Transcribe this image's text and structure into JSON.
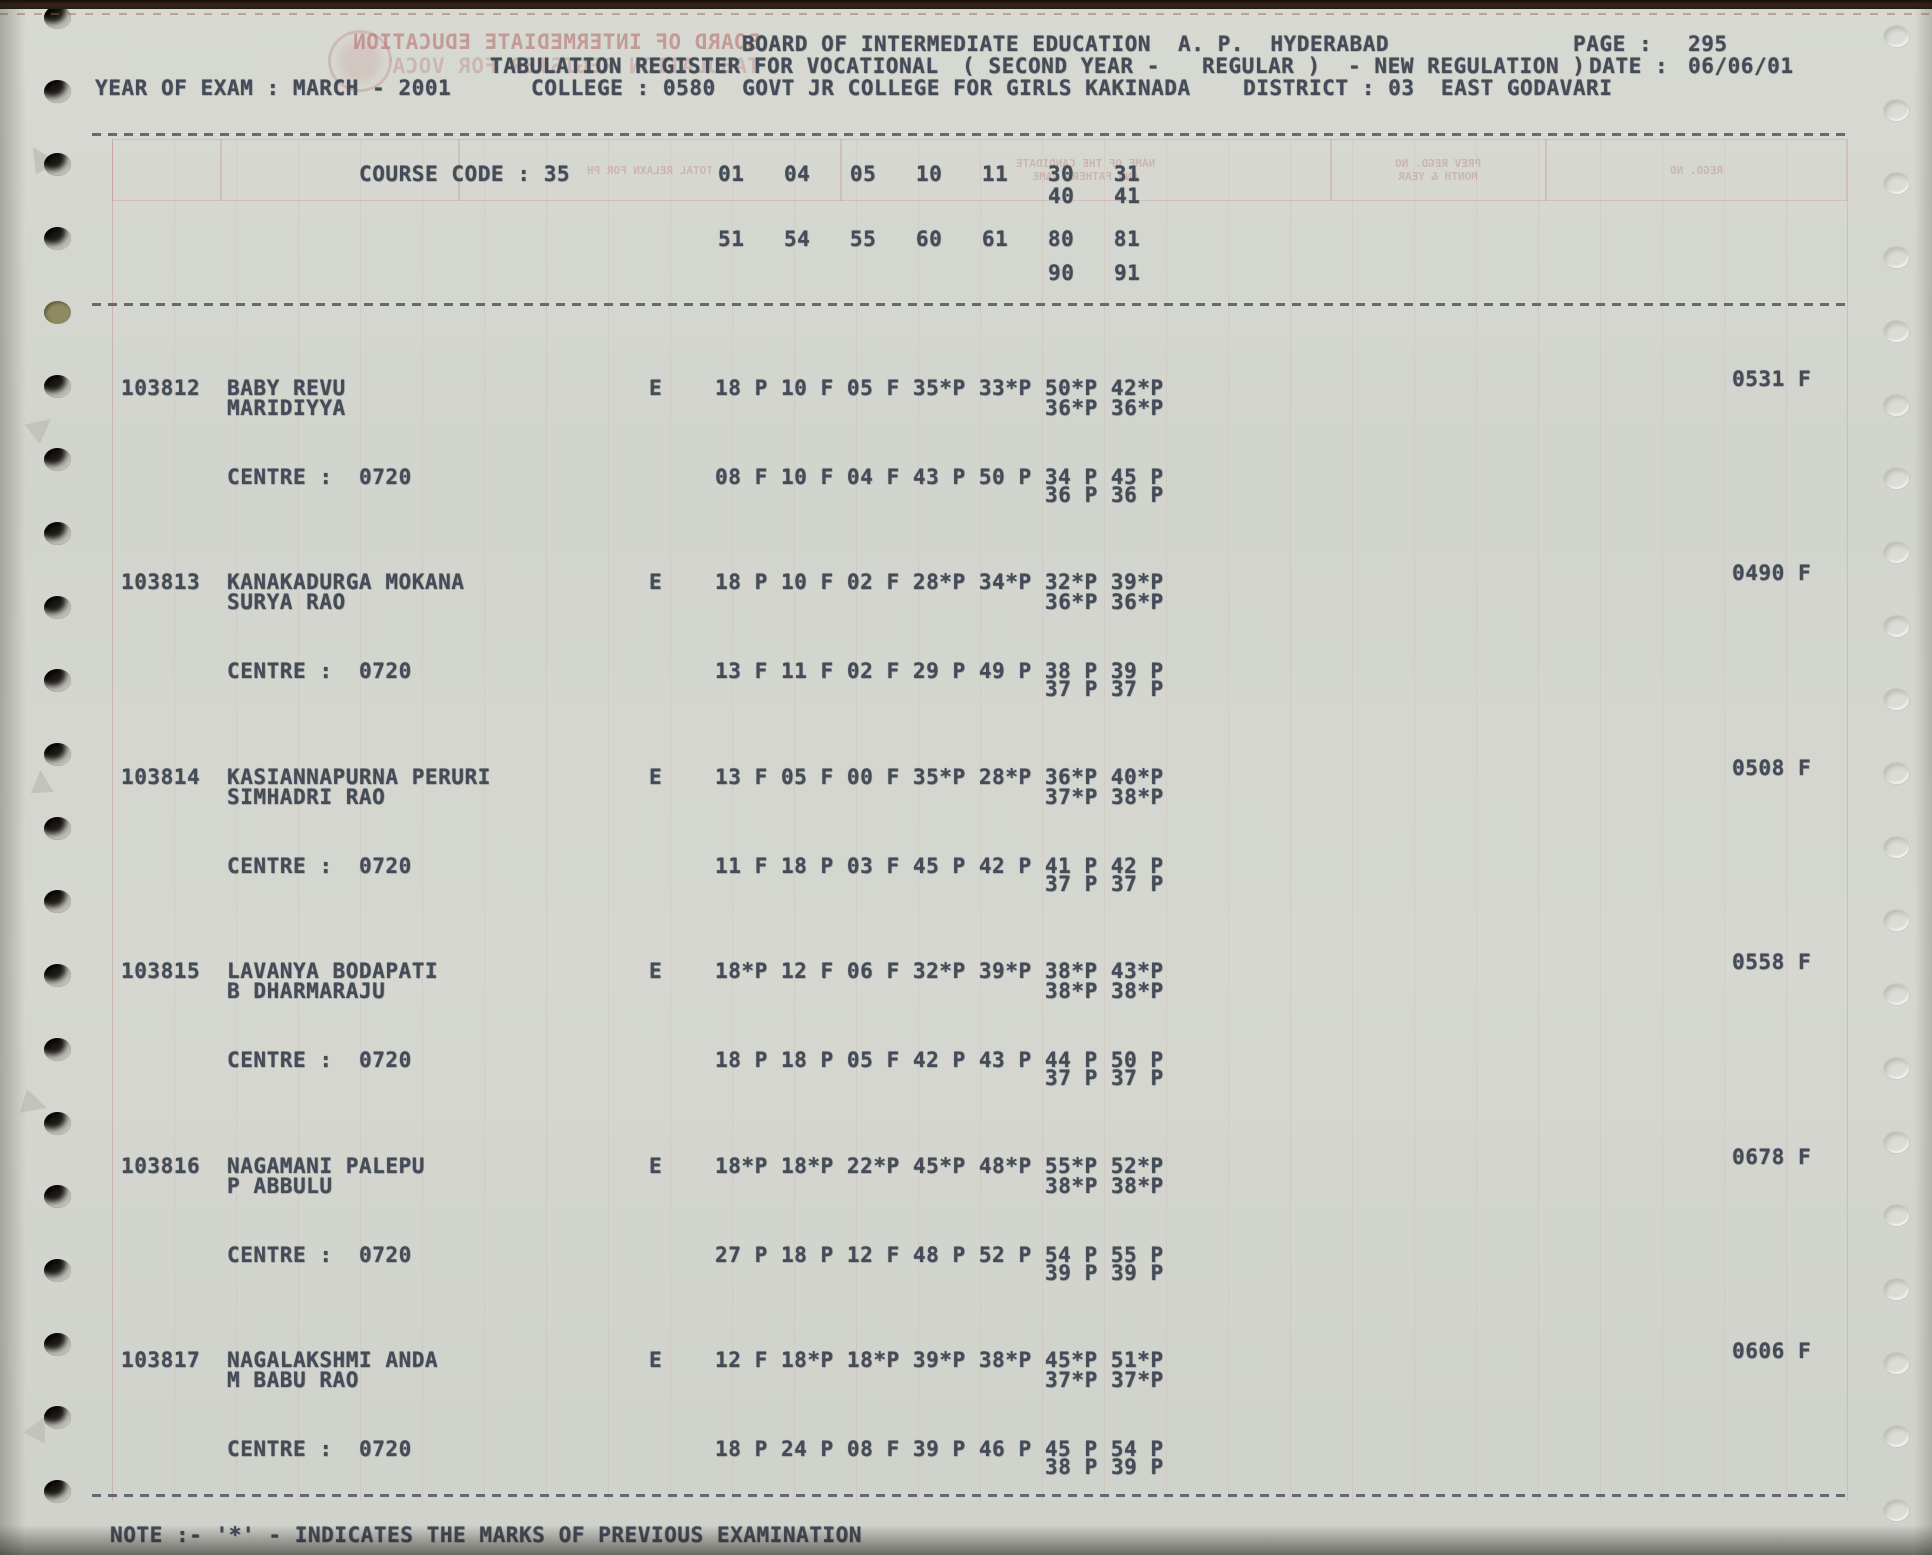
{
  "colors": {
    "ink": "#454c58",
    "paper": "#d4d6d0",
    "bleed_pink": "#b26a6a"
  },
  "page": {
    "header": {
      "org": "BOARD OF INTERMEDIATE EDUCATION",
      "org_place": "A. P.  HYDERABAD",
      "page_label": "PAGE :",
      "page_value": "295",
      "register_title": "TABULATION REGISTER FOR VOCATIONAL",
      "year_part": "( SECOND YEAR -",
      "regular_part": "REGULAR )",
      "regulation_part": "- NEW REGULATION )",
      "date_label": "DATE :",
      "date_value": "06/06/01",
      "exam_year": "YEAR OF EXAM : MARCH - 2001",
      "college": "COLLEGE : 0580  GOVT JR COLLEGE FOR GIRLS KAKINADA",
      "district": "DISTRICT : 03  EAST GODAVARI"
    },
    "course": {
      "label": "COURSE CODE : 35",
      "codes_row1": "01   04   05   10   11   30   31",
      "codes_row1b": "40   41",
      "codes_row2": "51   54   55   60   61   80   81",
      "codes_row2b": "90   91"
    },
    "records": [
      {
        "reg_no": "103812",
        "candidate_name": "BABY REVU",
        "father_name": "MARIDIYYA",
        "medium": "E",
        "marks_line1": "18 P 10 F 05 F 35*P 33*P 50*P 42*P",
        "marks_line2": "36*P 36*P",
        "centre_label": "CENTRE :",
        "centre_code": "0720",
        "centre_marks_line1": "08 F 10 F 04 F 43 P 50 P 34 P 45 P",
        "centre_marks_line2": "36 P 36 P",
        "total": "0531 F"
      },
      {
        "reg_no": "103813",
        "candidate_name": "KANAKADURGA MOKANA",
        "father_name": "SURYA RAO",
        "medium": "E",
        "marks_line1": "18 P 10 F 02 F 28*P 34*P 32*P 39*P",
        "marks_line2": "36*P 36*P",
        "centre_label": "CENTRE :",
        "centre_code": "0720",
        "centre_marks_line1": "13 F 11 F 02 F 29 P 49 P 38 P 39 P",
        "centre_marks_line2": "37 P 37 P",
        "total": "0490 F"
      },
      {
        "reg_no": "103814",
        "candidate_name": "KASIANNAPURNA PERURI",
        "father_name": "SIMHADRI RAO",
        "medium": "E",
        "marks_line1": "13 F 05 F 00 F 35*P 28*P 36*P 40*P",
        "marks_line2": "37*P 38*P",
        "centre_label": "CENTRE :",
        "centre_code": "0720",
        "centre_marks_line1": "11 F 18 P 03 F 45 P 42 P 41 P 42 P",
        "centre_marks_line2": "37 P 37 P",
        "total": "0508 F"
      },
      {
        "reg_no": "103815",
        "candidate_name": "LAVANYA BODAPATI",
        "father_name": "B DHARMARAJU",
        "medium": "E",
        "marks_line1": "18*P 12 F 06 F 32*P 39*P 38*P 43*P",
        "marks_line2": "38*P 38*P",
        "centre_label": "CENTRE :",
        "centre_code": "0720",
        "centre_marks_line1": "18 P 18 P 05 F 42 P 43 P 44 P 50 P",
        "centre_marks_line2": "37 P 37 P",
        "total": "0558 F"
      },
      {
        "reg_no": "103816",
        "candidate_name": "NAGAMANI PALEPU",
        "father_name": "P ABBULU",
        "medium": "E",
        "marks_line1": "18*P 18*P 22*P 45*P 48*P 55*P 52*P",
        "marks_line2": "38*P 38*P",
        "centre_label": "CENTRE :",
        "centre_code": "0720",
        "centre_marks_line1": "27 P 18 P 12 F 48 P 52 P 54 P 55 P",
        "centre_marks_line2": "39 P 39 P",
        "total": "0678 F"
      },
      {
        "reg_no": "103817",
        "candidate_name": "NAGALAKSHMI ANDA",
        "father_name": "M BABU RAO",
        "medium": "E",
        "marks_line1": "12 F 18*P 18*P 39*P 38*P 45*P 51*P",
        "marks_line2": "37*P 37*P",
        "centre_label": "CENTRE :",
        "centre_code": "0720",
        "centre_marks_line1": "18 P 24 P 08 F 39 P 46 P 45 P 54 P",
        "centre_marks_line2": "38 P 39 P",
        "total": "0606 F"
      }
    ],
    "note": "NOTE :- '*' - INDICATES THE MARKS OF PREVIOUS EXAMINATION",
    "bleedthrough": {
      "mirror_header1": "BOARD OF INTERMEDIATE EDUCATION (A.P) HYDERABAD",
      "mirror_header2": "TABULATION REGISTER FOR VOCATIONAL",
      "col_total": "TOTAL  RELAXN FOR PH",
      "col_name": "NAME OF THE CANDIDATE\nAND FATHERS NAME",
      "col_prev": "PREV REGD. NO\nMONTH & YEAR",
      "col_regd": "REGD. NO"
    }
  }
}
